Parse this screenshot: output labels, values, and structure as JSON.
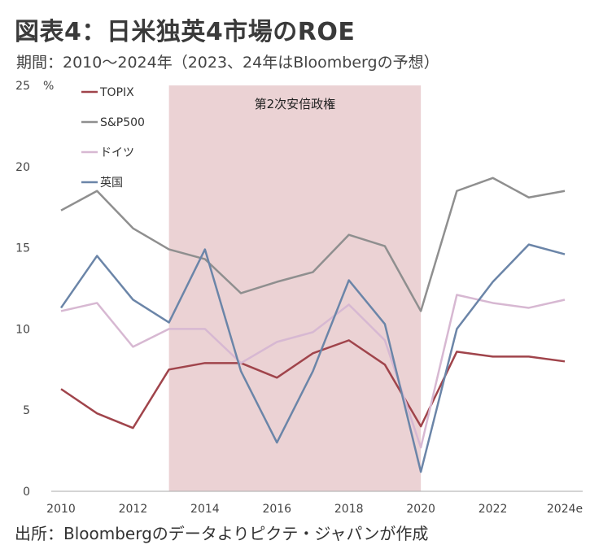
{
  "header": {
    "title": "図表4：日米独英4市場のROE",
    "period": "期間：2010～2024年（2023、24年はBloombergの予想）"
  },
  "footer": {
    "source": "出所：Bloombergのデータよりピクテ・ジャパンが作成"
  },
  "chart_data": {
    "type": "line",
    "x": [
      "2010",
      "2011",
      "2012",
      "2013",
      "2014",
      "2015",
      "2016",
      "2017",
      "2018",
      "2019",
      "2020",
      "2021",
      "2022",
      "2023",
      "2024e"
    ],
    "x_tick_labels": [
      "2010",
      "2012",
      "2014",
      "2016",
      "2018",
      "2020",
      "2022",
      "2024e"
    ],
    "y_unit": "%",
    "ylim": [
      0,
      25
    ],
    "y_ticks": [
      0,
      5,
      10,
      15,
      20,
      25
    ],
    "grid": false,
    "legend_position": "top-left",
    "annotation": {
      "label": "第2次安倍政権",
      "x_start": "2013",
      "x_end": "2020",
      "color": "#ebd2d4"
    },
    "series": [
      {
        "name": "TOPIX",
        "color": "#a0444b",
        "values": [
          6.3,
          4.8,
          3.9,
          7.5,
          7.9,
          7.9,
          7.0,
          8.5,
          9.3,
          7.8,
          4.0,
          8.6,
          8.3,
          8.3,
          8.0
        ]
      },
      {
        "name": "S&P500",
        "color": "#8f8f8f",
        "values": [
          17.3,
          18.5,
          16.2,
          14.9,
          14.3,
          12.2,
          12.9,
          13.5,
          15.8,
          15.1,
          11.1,
          18.5,
          19.3,
          18.1,
          18.5
        ]
      },
      {
        "name": "ドイツ",
        "color": "#d7b8d2",
        "values": [
          11.1,
          11.6,
          8.9,
          10.0,
          10.0,
          7.9,
          9.2,
          9.8,
          11.5,
          9.3,
          2.7,
          12.1,
          11.6,
          11.3,
          11.8
        ]
      },
      {
        "name": "英国",
        "color": "#6b85a8",
        "values": [
          11.3,
          14.5,
          11.8,
          10.4,
          14.9,
          7.4,
          3.0,
          7.4,
          13.0,
          10.3,
          1.2,
          10.0,
          12.9,
          15.2,
          14.6
        ]
      }
    ]
  }
}
